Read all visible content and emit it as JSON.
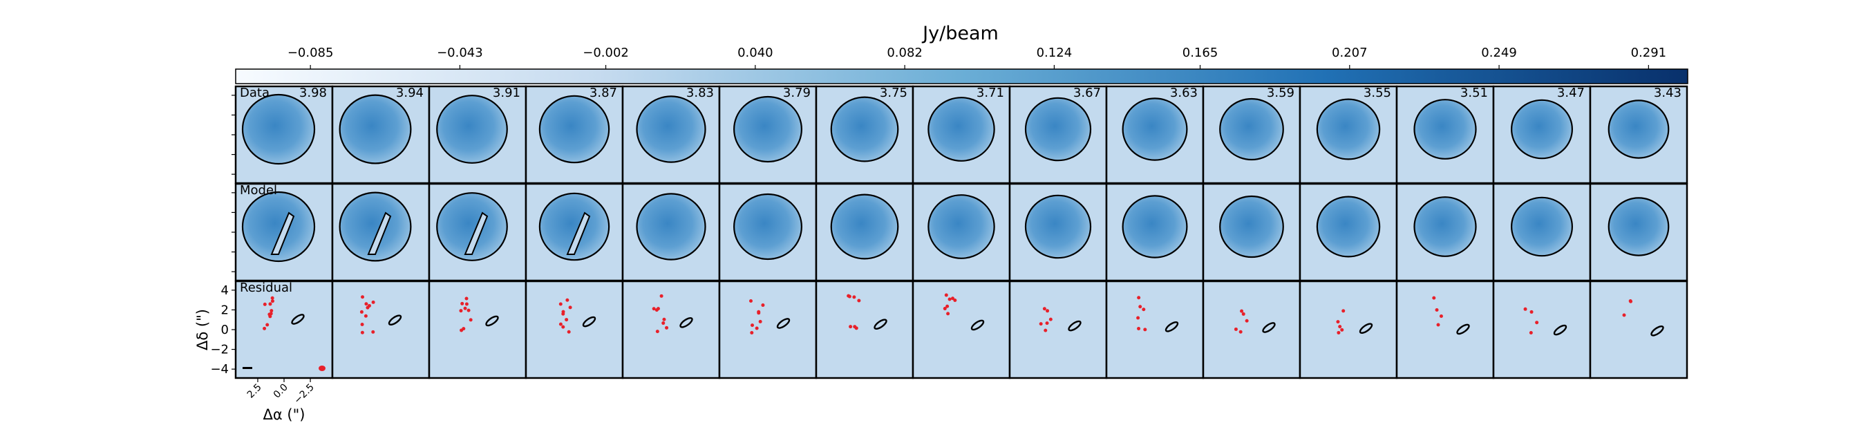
{
  "chart_data": {
    "type": "channel_map",
    "colorbar_label": "Jy/beam",
    "clim": [
      -0.106,
      0.302
    ],
    "cticks": [
      {
        "value": -0.085,
        "label": "−0.085"
      },
      {
        "value": -0.043,
        "label": "−0.043"
      },
      {
        "value": -0.002,
        "label": "−0.002"
      },
      {
        "value": 0.04,
        "label": "0.040"
      },
      0.082,
      0.124,
      0.165,
      0.207,
      0.249,
      0.291
    ],
    "velocities": [
      3.98,
      3.94,
      3.91,
      3.87,
      3.83,
      3.79,
      3.75,
      3.71,
      3.67,
      3.63,
      3.59,
      3.55,
      3.51,
      3.47,
      3.43
    ],
    "rows": [
      "Data",
      "Model",
      "Residual"
    ],
    "xlabel": "Δα (\")",
    "ylabel": "Δδ (\")",
    "xlim": [
      4.6,
      -4.6
    ],
    "ylim": [
      -4.9,
      4.9
    ],
    "xticks": [
      2.5,
      {
        "value": 0,
        "label": "0.0"
      },
      {
        "value": -2.5,
        "label": "−2.5"
      }
    ],
    "yticks": [
      4,
      2,
      0,
      {
        "value": -2,
        "label": "−2"
      },
      {
        "value": -4,
        "label": "−4"
      }
    ]
  }
}
